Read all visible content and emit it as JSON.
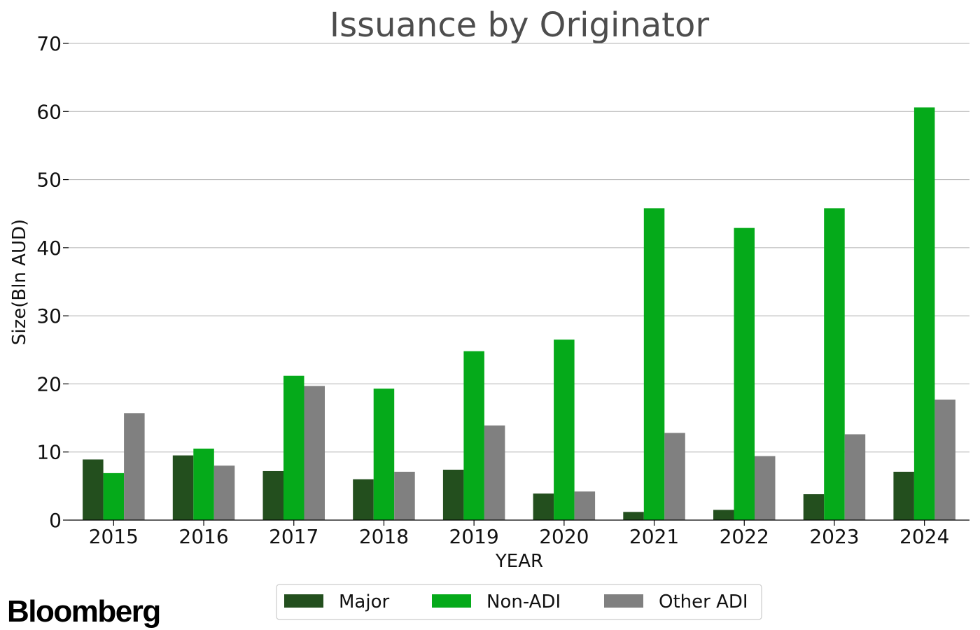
{
  "brand": {
    "logo_text": "Bloomberg"
  },
  "chart_data": {
    "type": "bar",
    "title": "Issuance by Originator",
    "xlabel": "YEAR",
    "ylabel": "Size(Bln AUD)",
    "ylim": [
      0,
      70
    ],
    "yticks": [
      0,
      10,
      20,
      30,
      40,
      50,
      60,
      70
    ],
    "grid": true,
    "legend_position": "bottom-center",
    "categories": [
      "2015",
      "2016",
      "2017",
      "2018",
      "2019",
      "2020",
      "2021",
      "2022",
      "2023",
      "2024"
    ],
    "series": [
      {
        "name": "Major",
        "color": "#234f1e",
        "values": [
          8.9,
          9.5,
          7.2,
          6.0,
          7.4,
          3.9,
          1.2,
          1.5,
          3.8,
          7.1
        ]
      },
      {
        "name": "Non-ADI",
        "color": "#05aa1a",
        "values": [
          6.9,
          10.5,
          21.2,
          19.3,
          24.8,
          26.5,
          45.8,
          42.9,
          45.8,
          60.6
        ]
      },
      {
        "name": "Other ADI",
        "color": "#808080",
        "values": [
          15.7,
          8.0,
          19.7,
          7.1,
          13.9,
          4.2,
          12.8,
          9.4,
          12.6,
          17.7
        ]
      }
    ]
  }
}
